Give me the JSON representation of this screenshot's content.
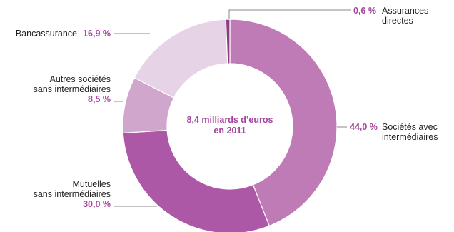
{
  "chart_data": {
    "type": "pie",
    "center_label": [
      "8,4 milliards d’euros",
      "en 2011"
    ],
    "slices": [
      {
        "label": [
          "Sociétés avec",
          "intermédiaires"
        ],
        "value": 44.0,
        "value_text": "44,0 %",
        "color": "#be7bb6"
      },
      {
        "label": [
          "Mutuelles",
          "sans intermédiaires"
        ],
        "value": 30.0,
        "value_text": "30,0 %",
        "color": "#ad58a6"
      },
      {
        "label": [
          "Autres sociétés",
          "sans intermédiaires"
        ],
        "value": 8.5,
        "value_text": "8,5 %",
        "color": "#d1a6cd"
      },
      {
        "label": [
          "Bancassurance"
        ],
        "value": 16.9,
        "value_text": "16,9 %",
        "color": "#e7d3e6"
      },
      {
        "label": [
          "Assurances",
          "directes"
        ],
        "value": 0.6,
        "value_text": "0,6 %",
        "color": "#8e3a86"
      }
    ],
    "accent_color": "#a6459e"
  }
}
